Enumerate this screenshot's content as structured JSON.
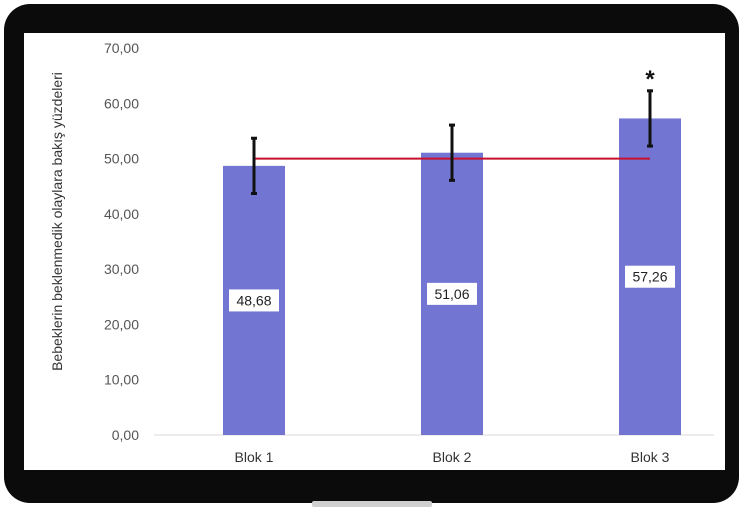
{
  "chart_data": {
    "type": "bar",
    "categories": [
      "Blok 1",
      "Blok 2",
      "Blok 3"
    ],
    "values": [
      48.68,
      51.06,
      57.26
    ],
    "value_labels": [
      "48,68",
      "51,06",
      "57,26"
    ],
    "error_bars": [
      5.0,
      5.0,
      5.0
    ],
    "reference_line": {
      "value": 50,
      "color": "#c8102e"
    },
    "annotations": [
      {
        "category": "Blok 3",
        "text": "*"
      }
    ],
    "ylabel": "Bebeklerin beklenmedik olaylara bakış yüzdeleri",
    "xlabel": "",
    "ylim": [
      0,
      70
    ],
    "yticks": [
      0,
      10,
      20,
      30,
      40,
      50,
      60,
      70
    ],
    "ytick_labels": [
      "0,00",
      "10,00",
      "20,00",
      "30,00",
      "40,00",
      "50,00",
      "60,00",
      "70,00"
    ],
    "bar_color": "#7276d2",
    "grid": false
  }
}
